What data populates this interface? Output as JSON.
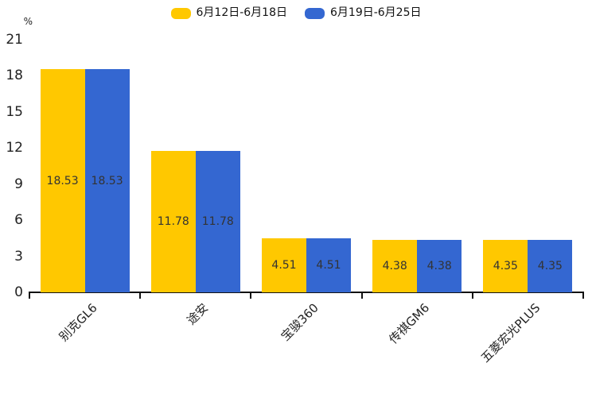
{
  "chart_data": {
    "type": "bar",
    "title": "",
    "categories": [
      "别克GL6",
      "途安",
      "宝骏360",
      "传祺GM6",
      "五菱宏光PLUS"
    ],
    "series": [
      {
        "name": "6月12日-6月18日",
        "color": "#FFC800",
        "values": [
          18.53,
          11.78,
          4.51,
          4.38,
          4.35
        ]
      },
      {
        "name": "6月19日-6月25日",
        "color": "#3467D1",
        "values": [
          18.53,
          11.78,
          4.51,
          4.38,
          4.35
        ]
      }
    ],
    "ylabel": "%",
    "ylim": [
      0,
      21
    ],
    "yticks": [
      0,
      3,
      6,
      9,
      12,
      15,
      18,
      21
    ],
    "grid": false,
    "legend_position": "top-center",
    "value_labels": "inside-center",
    "value_label_color": "#333333",
    "axis_color": "#111111"
  }
}
